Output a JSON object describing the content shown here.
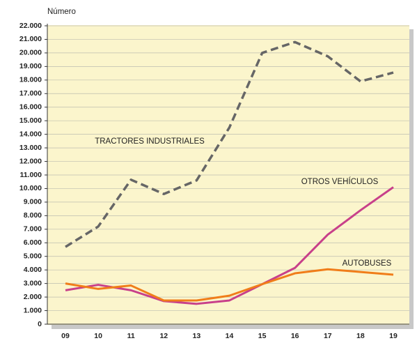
{
  "chart_data": {
    "type": "line",
    "y_label": "Número",
    "categories": [
      "09",
      "10",
      "11",
      "12",
      "13",
      "14",
      "15",
      "16",
      "17",
      "18",
      "19"
    ],
    "series": [
      {
        "name": "TRACTORES INDUSTRIALES",
        "color": "#666666",
        "dashed": true,
        "values": [
          5700,
          7200,
          10650,
          9600,
          10600,
          14500,
          20000,
          20800,
          19750,
          17900,
          18550
        ]
      },
      {
        "name": "OTROS VEHÍCULOS",
        "color": "#c8408a",
        "values": [
          2500,
          2900,
          2500,
          1700,
          1500,
          1750,
          2950,
          4150,
          6600,
          8400,
          10100
        ]
      },
      {
        "name": "AUTOBUSES",
        "color": "#f07d1a",
        "values": [
          3000,
          2600,
          2850,
          1750,
          1750,
          2100,
          2950,
          3750,
          4050,
          3850,
          3650
        ]
      }
    ],
    "ylim": [
      0,
      22000
    ],
    "yticks": [
      {
        "value": 0,
        "label": "0"
      },
      {
        "value": 1000,
        "label": "1.000"
      },
      {
        "value": 2000,
        "label": "2.000"
      },
      {
        "value": 3000,
        "label": "3.000"
      },
      {
        "value": 4000,
        "label": "4.000"
      },
      {
        "value": 5000,
        "label": "5.000"
      },
      {
        "value": 6000,
        "label": "6.000"
      },
      {
        "value": 7000,
        "label": "7.000"
      },
      {
        "value": 8000,
        "label": "8.000"
      },
      {
        "value": 9000,
        "label": "9.000"
      },
      {
        "value": 10000,
        "label": "10.000"
      },
      {
        "value": 11000,
        "label": "11.000"
      },
      {
        "value": 12000,
        "label": "12.000"
      },
      {
        "value": 13000,
        "label": "13.000"
      },
      {
        "value": 14000,
        "label": "14.000"
      },
      {
        "value": 15000,
        "label": "15.000"
      },
      {
        "value": 16000,
        "label": "16.000"
      },
      {
        "value": 17000,
        "label": "17.000"
      },
      {
        "value": 18000,
        "label": "18.000"
      },
      {
        "value": 19000,
        "label": "19.000"
      },
      {
        "value": 20000,
        "label": "20.000"
      },
      {
        "value": 21000,
        "label": "21.000"
      },
      {
        "value": 22000,
        "label": "22.000"
      }
    ],
    "grid": true
  }
}
